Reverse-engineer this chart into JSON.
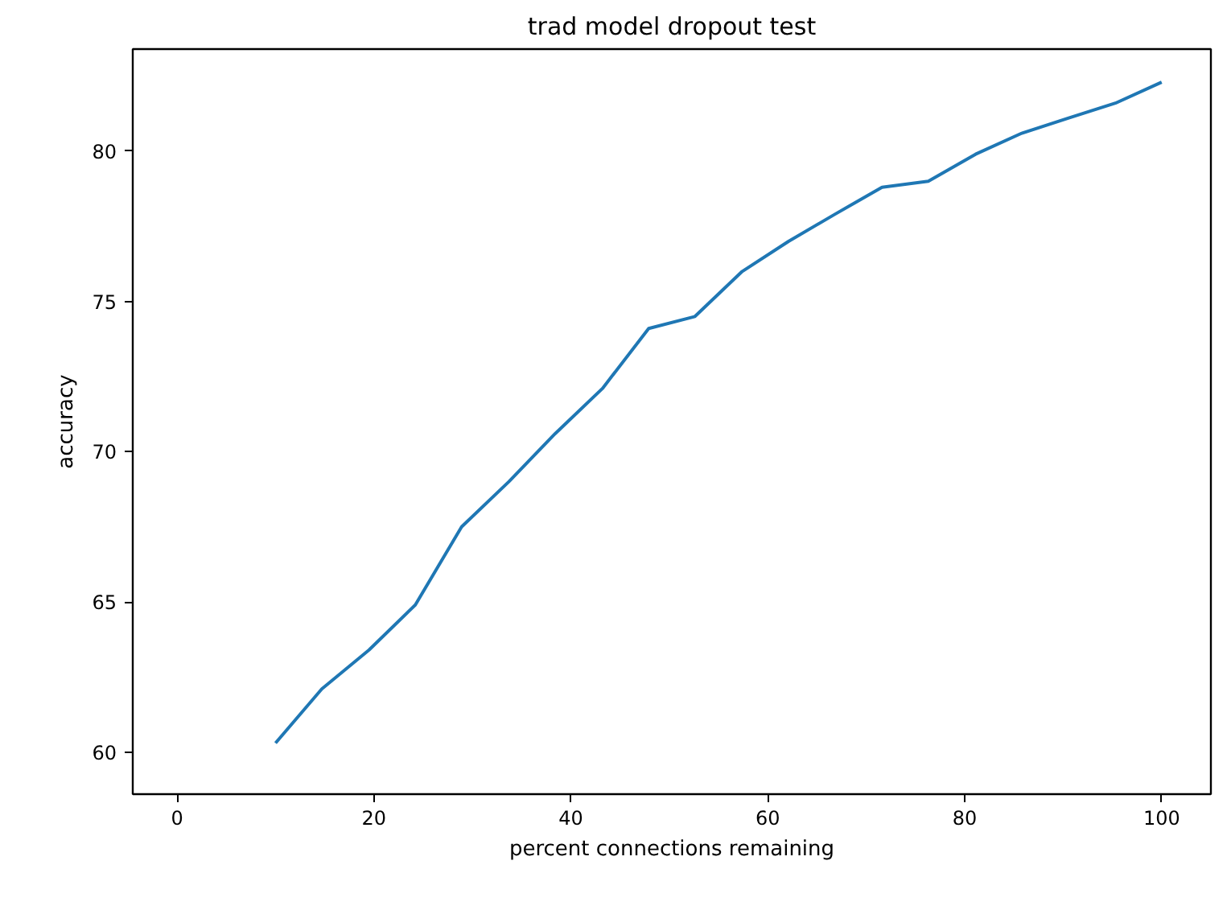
{
  "chart_data": {
    "type": "line",
    "title": "trad model dropout test",
    "xlabel": "percent connections remaining",
    "ylabel": "accuracy",
    "x": [
      10,
      14.7,
      19.5,
      24.2,
      28.9,
      33.7,
      38.4,
      43.2,
      47.9,
      52.6,
      57.4,
      62.1,
      66.8,
      71.6,
      76.3,
      81.1,
      85.8,
      90.5,
      95.3,
      100
    ],
    "series": [
      {
        "color": "#1f77b4",
        "values": [
          60.3,
          62.1,
          63.4,
          64.9,
          67.5,
          69.0,
          70.6,
          72.1,
          74.1,
          74.5,
          76.0,
          77.0,
          77.9,
          78.8,
          79.0,
          79.9,
          80.6,
          81.1,
          81.6,
          82.3
        ]
      }
    ],
    "xlim": [
      -4.5,
      105
    ],
    "ylim": [
      58.6,
      83.4
    ],
    "xticks": [
      0,
      20,
      40,
      60,
      80,
      100
    ],
    "yticks": [
      60,
      65,
      70,
      75,
      80
    ],
    "grid": false,
    "line_style": "solid",
    "marker": "none"
  }
}
